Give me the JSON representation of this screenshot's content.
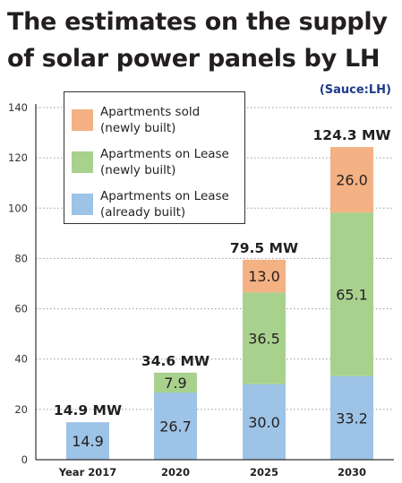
{
  "title_lines": [
    "The estimates on the supply",
    "of solar power panels by LH"
  ],
  "source": "(Sauce:LH)",
  "chart_data": {
    "type": "bar",
    "stacked": true,
    "categories": [
      "Year 2017",
      "2020",
      "2025",
      "2030"
    ],
    "series": [
      {
        "name": "Apartments on Lease\n(already built)",
        "color": "#9dc3e6",
        "values": [
          14.9,
          26.7,
          30.0,
          33.2
        ],
        "labels": [
          "14.9",
          "26.7",
          "30.0",
          "33.2"
        ]
      },
      {
        "name": "Apartments on Lease\n(newly built)",
        "color": "#a9d18e",
        "values": [
          0,
          7.9,
          36.5,
          65.1
        ],
        "labels": [
          "",
          "7.9",
          "36.5",
          "65.1"
        ]
      },
      {
        "name": "Apartments sold\n(newly built)",
        "color": "#f4b183",
        "values": [
          0,
          0,
          13.0,
          26.0
        ],
        "labels": [
          "",
          "",
          "13.0",
          "26.0"
        ]
      }
    ],
    "totals": [
      "14.9 MW",
      "34.6 MW",
      "79.5 MW",
      "124.3 MW"
    ],
    "y_ticks": [
      "0",
      "20",
      "40",
      "60",
      "80",
      "100",
      "120",
      "140"
    ],
    "ylim": [
      0,
      140
    ],
    "grid": "dotted horizontal",
    "legend_position": "top-left"
  }
}
